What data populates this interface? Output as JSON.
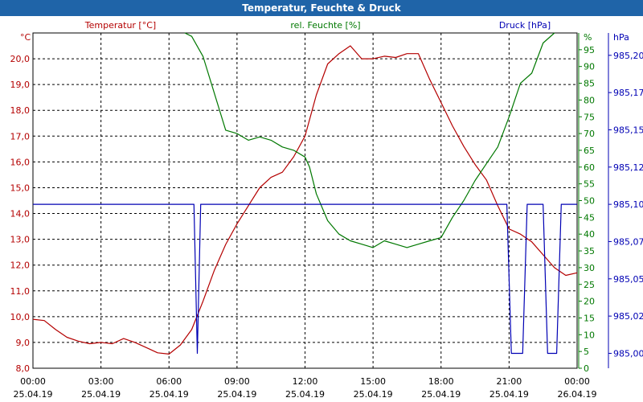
{
  "title": "Temperatur, Feuchte & Druck",
  "chart_data": {
    "type": "line",
    "colors": {
      "temperature": "#b40000",
      "humidity": "#007800",
      "pressure": "#0000b4",
      "title_bar": "#1f64a8"
    },
    "axes": {
      "temperature": {
        "label": "Temperatur [°C]",
        "unit": "°C",
        "ylim": [
          8.0,
          21.0
        ],
        "ticks": [
          "8,0",
          "9,0",
          "10,0",
          "11,0",
          "12,0",
          "13,0",
          "14,0",
          "15,0",
          "16,0",
          "17,0",
          "18,0",
          "19,0",
          "20,0"
        ]
      },
      "humidity": {
        "label": "rel. Feuchte [%]",
        "unit": "%",
        "ylim": [
          0,
          100
        ],
        "ticks": [
          "0",
          "5",
          "10",
          "15",
          "20",
          "25",
          "30",
          "35",
          "40",
          "45",
          "50",
          "55",
          "60",
          "65",
          "70",
          "75",
          "80",
          "85",
          "90",
          "95"
        ]
      },
      "pressure": {
        "label": "Druck [hPa]",
        "unit": "hPa",
        "ylim": [
          984.99,
          985.215
        ],
        "ticks": [
          {
            "value": 985.0,
            "label": "985,00"
          },
          {
            "value": 985.025,
            "label": "985,02"
          },
          {
            "value": 985.05,
            "label": "985,05"
          },
          {
            "value": 985.075,
            "label": "985,07"
          },
          {
            "value": 985.1,
            "label": "985,10"
          },
          {
            "value": 985.125,
            "label": "985,12"
          },
          {
            "value": 985.15,
            "label": "985,15"
          },
          {
            "value": 985.175,
            "label": "985,17"
          },
          {
            "value": 985.2,
            "label": "985,20"
          }
        ]
      }
    },
    "x": {
      "xlim_hours": [
        0,
        24
      ],
      "ticks": [
        {
          "hour": 0,
          "time": "00:00",
          "date": "25.04.19"
        },
        {
          "hour": 3,
          "time": "03:00",
          "date": "25.04.19"
        },
        {
          "hour": 6,
          "time": "06:00",
          "date": "25.04.19"
        },
        {
          "hour": 9,
          "time": "09:00",
          "date": "25.04.19"
        },
        {
          "hour": 12,
          "time": "12:00",
          "date": "25.04.19"
        },
        {
          "hour": 15,
          "time": "15:00",
          "date": "25.04.19"
        },
        {
          "hour": 18,
          "time": "18:00",
          "date": "25.04.19"
        },
        {
          "hour": 21,
          "time": "21:00",
          "date": "25.04.19"
        },
        {
          "hour": 24,
          "time": "00:00",
          "date": "26.04.19"
        }
      ]
    },
    "grid": true,
    "series": [
      {
        "name": "Temperatur [°C]",
        "axis": "temperature",
        "points": [
          [
            0,
            9.9
          ],
          [
            0.5,
            9.85
          ],
          [
            1,
            9.5
          ],
          [
            1.5,
            9.2
          ],
          [
            2,
            9.05
          ],
          [
            2.5,
            8.95
          ],
          [
            3,
            9.0
          ],
          [
            3.5,
            8.95
          ],
          [
            4,
            9.15
          ],
          [
            4.5,
            9.0
          ],
          [
            5,
            8.8
          ],
          [
            5.5,
            8.6
          ],
          [
            6,
            8.55
          ],
          [
            6.5,
            8.9
          ],
          [
            7,
            9.5
          ],
          [
            7.5,
            10.6
          ],
          [
            8,
            11.8
          ],
          [
            8.5,
            12.8
          ],
          [
            9,
            13.6
          ],
          [
            9.5,
            14.3
          ],
          [
            10,
            15.0
          ],
          [
            10.5,
            15.4
          ],
          [
            11,
            15.6
          ],
          [
            11.5,
            16.2
          ],
          [
            12,
            17.0
          ],
          [
            12.5,
            18.6
          ],
          [
            13,
            19.8
          ],
          [
            13.5,
            20.2
          ],
          [
            14,
            20.5
          ],
          [
            14.5,
            20.0
          ],
          [
            15,
            20.0
          ],
          [
            15.5,
            20.1
          ],
          [
            16,
            20.05
          ],
          [
            16.5,
            20.2
          ],
          [
            17,
            20.2
          ],
          [
            17.5,
            19.2
          ],
          [
            18,
            18.3
          ],
          [
            18.5,
            17.4
          ],
          [
            19,
            16.6
          ],
          [
            19.5,
            15.9
          ],
          [
            20,
            15.3
          ],
          [
            20.5,
            14.3
          ],
          [
            21,
            13.4
          ],
          [
            21.5,
            13.2
          ],
          [
            22,
            12.9
          ],
          [
            22.5,
            12.4
          ],
          [
            23,
            11.9
          ],
          [
            23.5,
            11.6
          ],
          [
            24,
            11.7
          ]
        ]
      },
      {
        "name": "rel. Feuchte [%]",
        "axis": "humidity",
        "points": [
          [
            6.7,
            100
          ],
          [
            7,
            99
          ],
          [
            7.5,
            93
          ],
          [
            8,
            82
          ],
          [
            8.5,
            71
          ],
          [
            9,
            70
          ],
          [
            9.5,
            68
          ],
          [
            10,
            69
          ],
          [
            10.5,
            68
          ],
          [
            11,
            66
          ],
          [
            11.5,
            65
          ],
          [
            12,
            63
          ],
          [
            12.2,
            60
          ],
          [
            12.5,
            52
          ],
          [
            13,
            44
          ],
          [
            13.5,
            40
          ],
          [
            14,
            38
          ],
          [
            14.5,
            37
          ],
          [
            15,
            36
          ],
          [
            15.5,
            38
          ],
          [
            16,
            37
          ],
          [
            16.5,
            36
          ],
          [
            17,
            37
          ],
          [
            17.5,
            38
          ],
          [
            18,
            39
          ],
          [
            18.5,
            45
          ],
          [
            19,
            50
          ],
          [
            19.5,
            56
          ],
          [
            20,
            61
          ],
          [
            20.5,
            66
          ],
          [
            21,
            75
          ],
          [
            21.5,
            85
          ],
          [
            22,
            88
          ],
          [
            22.5,
            97
          ],
          [
            23,
            100
          ]
        ]
      },
      {
        "name": "Druck [hPa]",
        "axis": "pressure",
        "points": [
          [
            0,
            985.1
          ],
          [
            7.1,
            985.1
          ],
          [
            7.25,
            985.0
          ],
          [
            7.4,
            985.1
          ],
          [
            20.9,
            985.1
          ],
          [
            21.1,
            985.0
          ],
          [
            21.6,
            985.0
          ],
          [
            21.8,
            985.1
          ],
          [
            22.5,
            985.1
          ],
          [
            22.7,
            985.0
          ],
          [
            23.1,
            985.0
          ],
          [
            23.3,
            985.1
          ],
          [
            24,
            985.1
          ]
        ]
      }
    ]
  }
}
